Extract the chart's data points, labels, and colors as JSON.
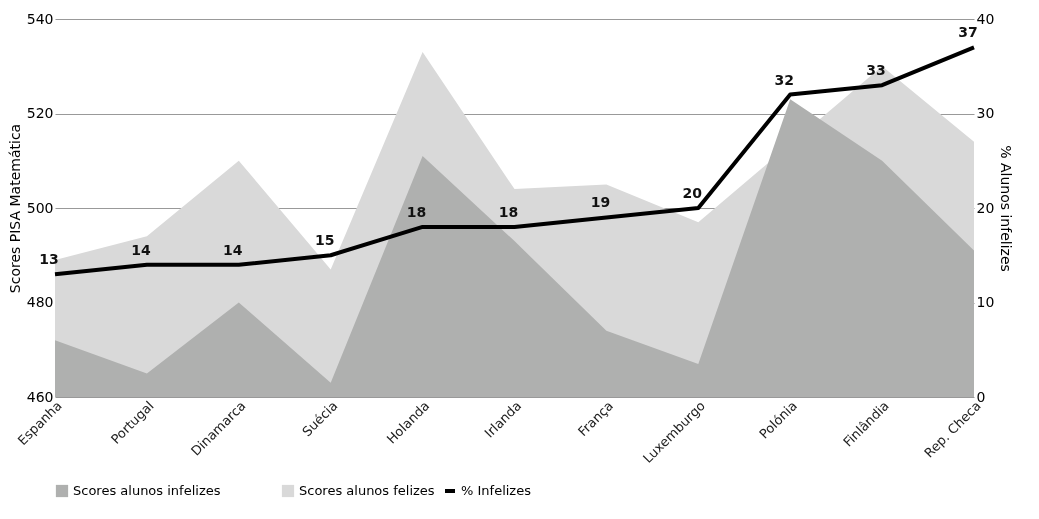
{
  "chart_data": {
    "type": "area",
    "categories": [
      "Espanha",
      "Portugal",
      "Dinamarca",
      "Suécia",
      "Holanda",
      "Irlanda",
      "França",
      "Luxemburgo",
      "Polónia",
      "Finlândia",
      "Rep. Checa"
    ],
    "ylabel": "Scores PISA Matemática",
    "y2label": "% Alunos infelizes",
    "ylim": [
      460,
      540
    ],
    "yticks": [
      460,
      480,
      500,
      520,
      540
    ],
    "y2lim": [
      0,
      40
    ],
    "y2ticks": [
      0,
      10,
      20,
      30,
      40
    ],
    "series": [
      {
        "name": "Scores alunos felizes",
        "color": "#d9d9d9",
        "values": [
          489,
          494,
          510,
          487,
          533,
          504,
          505,
          497,
          null,
          530,
          514
        ]
      },
      {
        "name": "Scores alunos infelizes",
        "color": "#afb0af",
        "values": [
          472,
          465,
          480,
          463,
          511,
          493,
          474,
          467,
          523,
          510,
          491
        ]
      },
      {
        "name": "% Infelizes",
        "type": "line",
        "axis": "y2",
        "color": "#000000",
        "values": [
          13,
          14,
          14,
          15,
          18,
          18,
          19,
          20,
          32,
          33,
          37
        ],
        "value_labels": [
          "13",
          "14",
          "14",
          "15",
          "18",
          "18",
          "19",
          "20",
          "32",
          "33",
          "37"
        ]
      }
    ],
    "legend": "bottom",
    "grid": "y",
    "line_style": "solid"
  }
}
